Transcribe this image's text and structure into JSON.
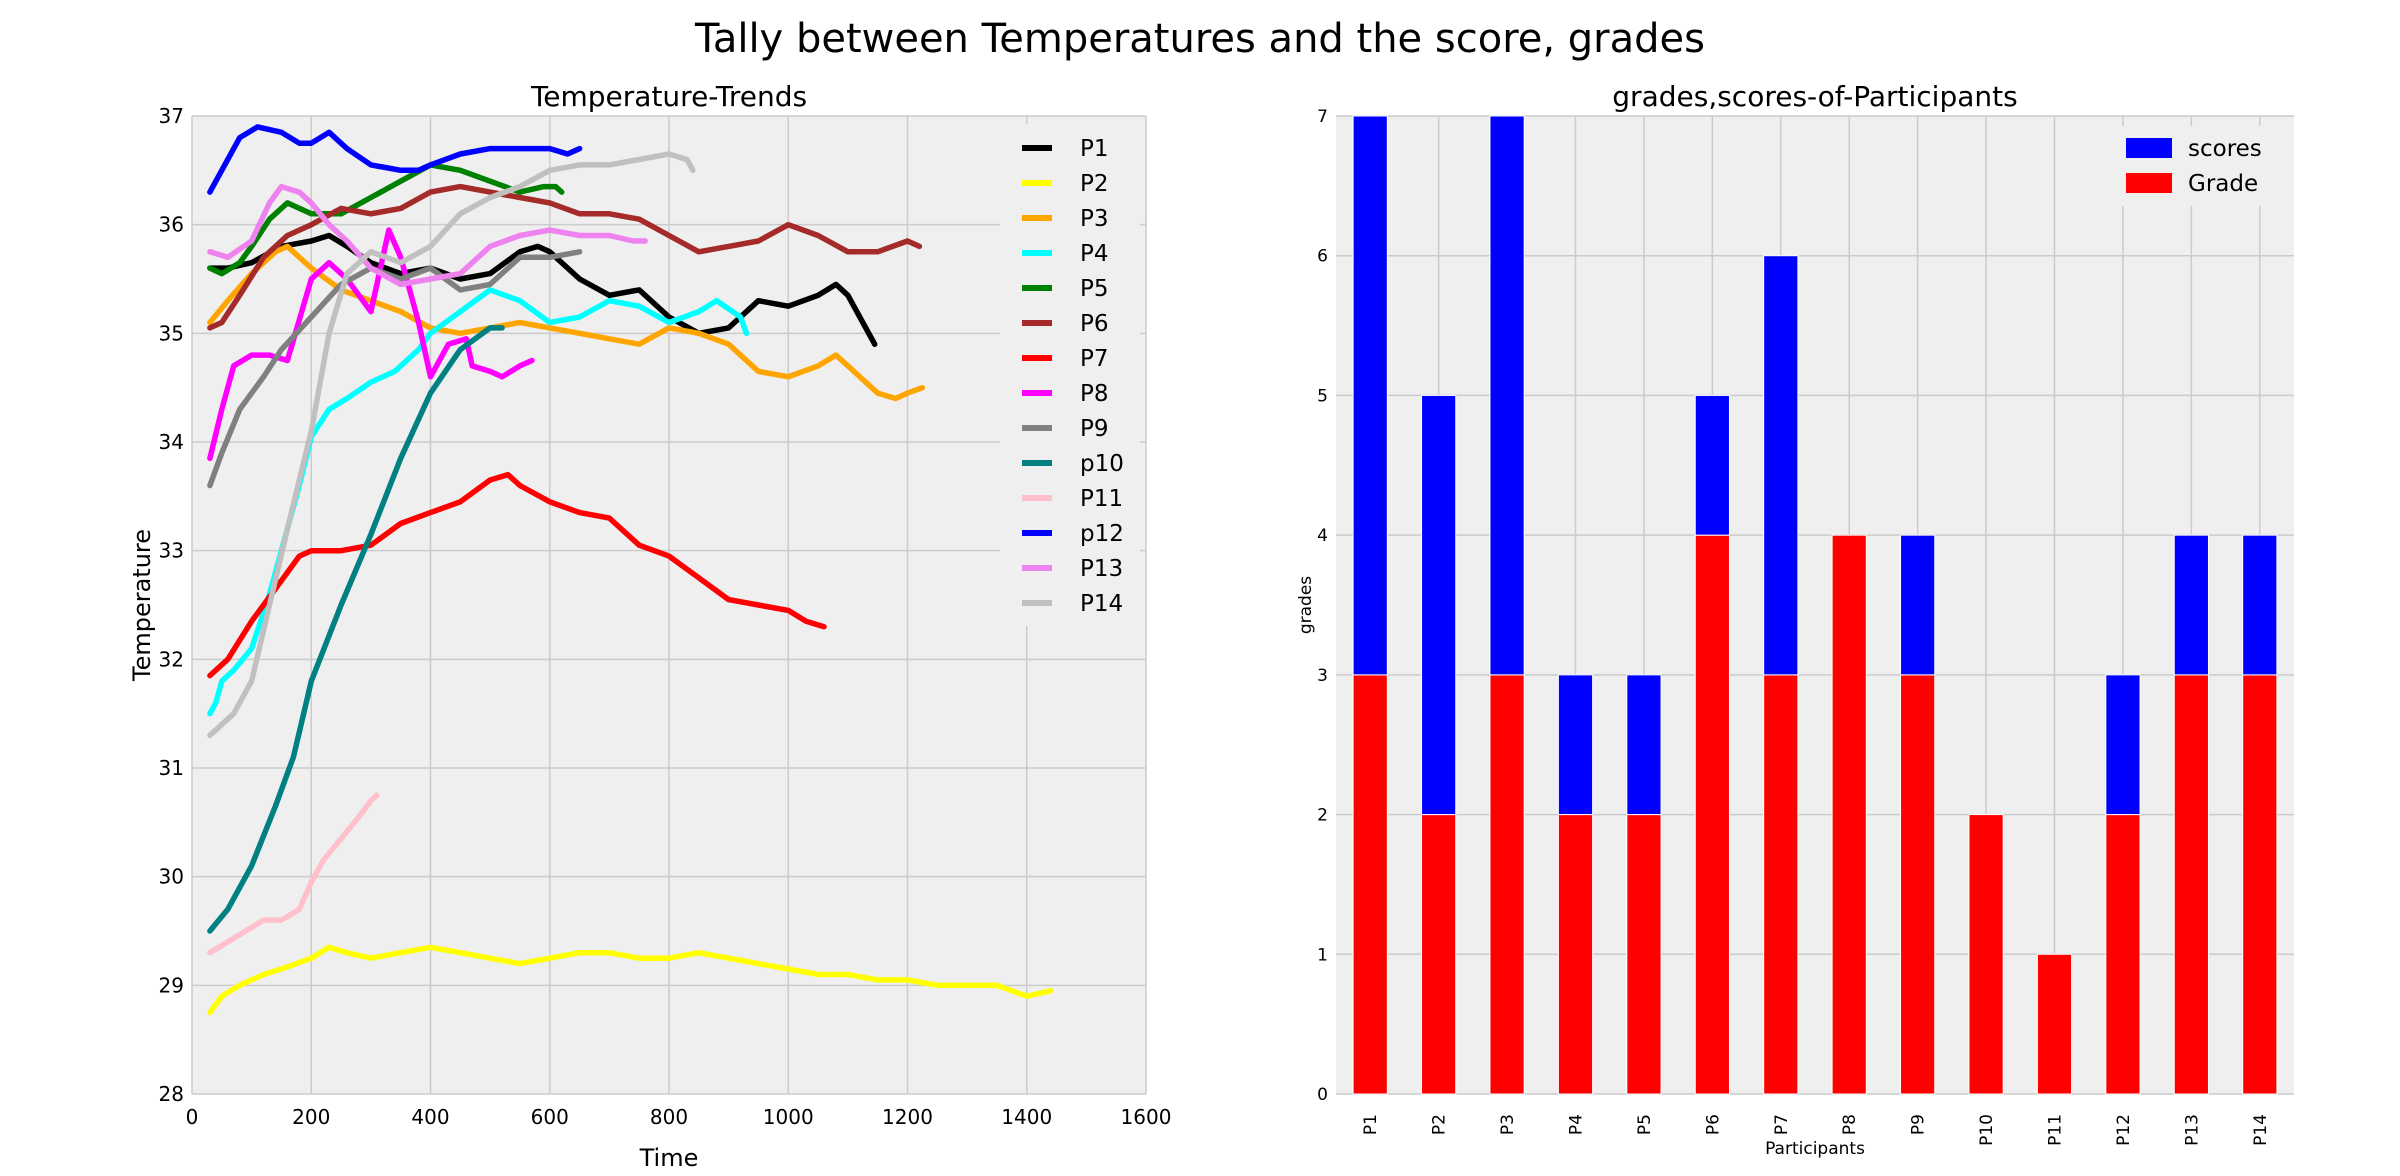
{
  "figure": {
    "title": "Tally between Temperatures and the score, grades"
  },
  "chart_data": [
    {
      "type": "line",
      "title": "Temperature-Trends",
      "xlabel": "Time",
      "ylabel": "Temperature",
      "xlim": [
        0,
        1600
      ],
      "ylim": [
        28,
        37
      ],
      "xticks": [
        "0",
        "200",
        "400",
        "600",
        "800",
        "1000",
        "1200",
        "1400",
        "1600"
      ],
      "yticks": [
        "28",
        "29",
        "30",
        "31",
        "32",
        "33",
        "34",
        "35",
        "36",
        "37"
      ],
      "grid": true,
      "legend": "top-right",
      "series": [
        {
          "name": "P1",
          "color": "#000000",
          "x": [
            30,
            60,
            100,
            150,
            200,
            230,
            260,
            300,
            350,
            400,
            450,
            500,
            550,
            580,
            600,
            650,
            700,
            750,
            800,
            850,
            900,
            950,
            1000,
            1050,
            1080,
            1100,
            1145
          ],
          "y": [
            35.6,
            35.6,
            35.65,
            35.8,
            35.85,
            35.9,
            35.8,
            35.65,
            35.55,
            35.6,
            35.5,
            35.55,
            35.75,
            35.8,
            35.75,
            35.5,
            35.35,
            35.4,
            35.15,
            35.0,
            35.05,
            35.3,
            35.25,
            35.35,
            35.45,
            35.35,
            34.9
          ]
        },
        {
          "name": "P2",
          "color": "#ffff00",
          "x": [
            30,
            50,
            80,
            120,
            150,
            200,
            230,
            260,
            300,
            350,
            400,
            450,
            500,
            550,
            600,
            650,
            700,
            750,
            800,
            850,
            900,
            950,
            1000,
            1050,
            1100,
            1150,
            1200,
            1250,
            1300,
            1350,
            1400,
            1440
          ],
          "y": [
            28.75,
            28.9,
            29.0,
            29.1,
            29.15,
            29.25,
            29.35,
            29.3,
            29.25,
            29.3,
            29.35,
            29.3,
            29.25,
            29.2,
            29.25,
            29.3,
            29.3,
            29.25,
            29.25,
            29.3,
            29.25,
            29.2,
            29.15,
            29.1,
            29.1,
            29.05,
            29.05,
            29.0,
            29.0,
            29.0,
            28.9,
            28.95
          ]
        },
        {
          "name": "P3",
          "color": "#ffa500",
          "x": [
            30,
            60,
            100,
            140,
            160,
            200,
            250,
            300,
            350,
            400,
            450,
            500,
            550,
            600,
            650,
            700,
            750,
            800,
            850,
            900,
            950,
            1000,
            1050,
            1080,
            1100,
            1150,
            1180,
            1200,
            1225
          ],
          "y": [
            35.1,
            35.3,
            35.55,
            35.75,
            35.8,
            35.6,
            35.4,
            35.3,
            35.2,
            35.05,
            35.0,
            35.05,
            35.1,
            35.05,
            35.0,
            34.95,
            34.9,
            35.05,
            35.0,
            34.9,
            34.65,
            34.6,
            34.7,
            34.8,
            34.7,
            34.45,
            34.4,
            34.45,
            34.5
          ]
        },
        {
          "name": "P4",
          "color": "#00ffff",
          "x": [
            30,
            40,
            50,
            70,
            100,
            130,
            150,
            180,
            200,
            230,
            260,
            300,
            340,
            380,
            400,
            450,
            500,
            550,
            600,
            650,
            700,
            750,
            800,
            850,
            880,
            920,
            930
          ],
          "y": [
            31.5,
            31.6,
            31.8,
            31.9,
            32.1,
            32.6,
            33.0,
            33.6,
            34.05,
            34.3,
            34.4,
            34.55,
            34.65,
            34.85,
            35.0,
            35.2,
            35.4,
            35.3,
            35.1,
            35.15,
            35.3,
            35.25,
            35.1,
            35.2,
            35.3,
            35.15,
            35.0
          ]
        },
        {
          "name": "P5",
          "color": "#008000",
          "x": [
            30,
            50,
            80,
            100,
            130,
            160,
            200,
            250,
            300,
            350,
            400,
            450,
            500,
            550,
            590,
            610,
            620
          ],
          "y": [
            35.6,
            35.55,
            35.65,
            35.8,
            36.05,
            36.2,
            36.1,
            36.1,
            36.25,
            36.4,
            36.55,
            36.5,
            36.4,
            36.3,
            36.35,
            36.35,
            36.3
          ]
        },
        {
          "name": "P6",
          "color": "#a52a2a",
          "x": [
            30,
            50,
            80,
            120,
            160,
            200,
            250,
            300,
            350,
            400,
            450,
            500,
            550,
            600,
            650,
            700,
            750,
            800,
            850,
            900,
            950,
            1000,
            1050,
            1100,
            1150,
            1200,
            1220
          ],
          "y": [
            35.05,
            35.1,
            35.35,
            35.7,
            35.9,
            36.0,
            36.15,
            36.1,
            36.15,
            36.3,
            36.35,
            36.3,
            36.25,
            36.2,
            36.1,
            36.1,
            36.05,
            35.9,
            35.75,
            35.8,
            35.85,
            36.0,
            35.9,
            35.75,
            35.75,
            35.85,
            35.8
          ]
        },
        {
          "name": "P7",
          "color": "#ff0000",
          "x": [
            30,
            60,
            100,
            140,
            180,
            200,
            250,
            300,
            350,
            400,
            450,
            500,
            530,
            550,
            600,
            650,
            700,
            750,
            800,
            850,
            900,
            950,
            1000,
            1030,
            1060
          ],
          "y": [
            31.85,
            32.0,
            32.35,
            32.65,
            32.95,
            33.0,
            33.0,
            33.05,
            33.25,
            33.35,
            33.45,
            33.65,
            33.7,
            33.6,
            33.45,
            33.35,
            33.3,
            33.05,
            32.95,
            32.75,
            32.55,
            32.5,
            32.45,
            32.35,
            32.3
          ]
        },
        {
          "name": "P8",
          "color": "#ff00ff",
          "x": [
            30,
            50,
            70,
            100,
            130,
            160,
            200,
            230,
            260,
            300,
            330,
            350,
            380,
            400,
            430,
            460,
            470,
            500,
            520,
            550,
            570
          ],
          "y": [
            33.85,
            34.3,
            34.7,
            34.8,
            34.8,
            34.75,
            35.5,
            35.65,
            35.5,
            35.2,
            35.95,
            35.7,
            35.1,
            34.6,
            34.9,
            34.95,
            34.7,
            34.65,
            34.6,
            34.7,
            34.75
          ]
        },
        {
          "name": "P9",
          "color": "#808080",
          "x": [
            30,
            50,
            80,
            120,
            150,
            200,
            250,
            300,
            350,
            400,
            450,
            500,
            530,
            550,
            600,
            650
          ],
          "y": [
            33.6,
            33.9,
            34.3,
            34.6,
            34.85,
            35.15,
            35.45,
            35.6,
            35.5,
            35.6,
            35.4,
            35.45,
            35.6,
            35.7,
            35.7,
            35.75
          ]
        },
        {
          "name": "p10",
          "color": "#008080",
          "x": [
            30,
            60,
            100,
            140,
            170,
            200,
            250,
            300,
            350,
            400,
            450,
            500,
            520
          ],
          "y": [
            29.5,
            29.7,
            30.1,
            30.65,
            31.1,
            31.8,
            32.5,
            33.15,
            33.85,
            34.45,
            34.85,
            35.05,
            35.05
          ]
        },
        {
          "name": "P11",
          "color": "#ffc0cb",
          "x": [
            30,
            60,
            90,
            120,
            150,
            180,
            200,
            220,
            250,
            280,
            300,
            310
          ],
          "y": [
            29.3,
            29.4,
            29.5,
            29.6,
            29.6,
            29.7,
            29.95,
            30.15,
            30.35,
            30.55,
            30.7,
            30.75
          ]
        },
        {
          "name": "p12",
          "color": "#0000ff",
          "x": [
            30,
            50,
            80,
            110,
            150,
            180,
            200,
            230,
            260,
            300,
            350,
            380,
            400,
            450,
            500,
            550,
            600,
            630,
            650
          ],
          "y": [
            36.3,
            36.5,
            36.8,
            36.9,
            36.85,
            36.75,
            36.75,
            36.85,
            36.7,
            36.55,
            36.5,
            36.5,
            36.55,
            36.65,
            36.7,
            36.7,
            36.7,
            36.65,
            36.7
          ]
        },
        {
          "name": "P13",
          "color": "#ee82ee",
          "x": [
            30,
            60,
            100,
            130,
            150,
            180,
            200,
            230,
            260,
            300,
            350,
            400,
            450,
            500,
            550,
            600,
            650,
            700,
            740,
            760
          ],
          "y": [
            35.75,
            35.7,
            35.85,
            36.2,
            36.35,
            36.3,
            36.2,
            36.0,
            35.85,
            35.6,
            35.45,
            35.5,
            35.55,
            35.8,
            35.9,
            35.95,
            35.9,
            35.9,
            35.85,
            35.85
          ]
        },
        {
          "name": "P14",
          "color": "#c0c0c0",
          "x": [
            30,
            50,
            70,
            100,
            130,
            160,
            200,
            230,
            260,
            300,
            350,
            400,
            450,
            500,
            550,
            600,
            650,
            700,
            750,
            800,
            830,
            840
          ],
          "y": [
            31.3,
            31.4,
            31.5,
            31.8,
            32.5,
            33.2,
            34.1,
            35.0,
            35.55,
            35.75,
            35.65,
            35.8,
            36.1,
            36.25,
            36.35,
            36.5,
            36.55,
            36.55,
            36.6,
            36.65,
            36.6,
            36.5
          ]
        }
      ]
    },
    {
      "type": "bar",
      "stacked": true,
      "title": "grades,scores-of-Participants",
      "xlabel": "Participants",
      "ylabel": "grades",
      "ylim": [
        0,
        7
      ],
      "yticks": [
        "0",
        "1",
        "2",
        "3",
        "4",
        "5",
        "6",
        "7"
      ],
      "grid": true,
      "legend": "top-right",
      "categories": [
        "P1",
        "P2",
        "P3",
        "P4",
        "P5",
        "P6",
        "P7",
        "P8",
        "P9",
        "P10",
        "P11",
        "P12",
        "P13",
        "P14"
      ],
      "series": [
        {
          "name": "Grade",
          "color": "#ff0000",
          "values": [
            3,
            2,
            3,
            2,
            2,
            4,
            3,
            4,
            3,
            2,
            1,
            2,
            3,
            3
          ]
        },
        {
          "name": "scores",
          "color": "#0000ff",
          "values": [
            4,
            3,
            4,
            1,
            1,
            1,
            3,
            0,
            1,
            0,
            0,
            1,
            1,
            1
          ]
        }
      ],
      "legend_order": [
        "scores",
        "Grade"
      ]
    }
  ]
}
